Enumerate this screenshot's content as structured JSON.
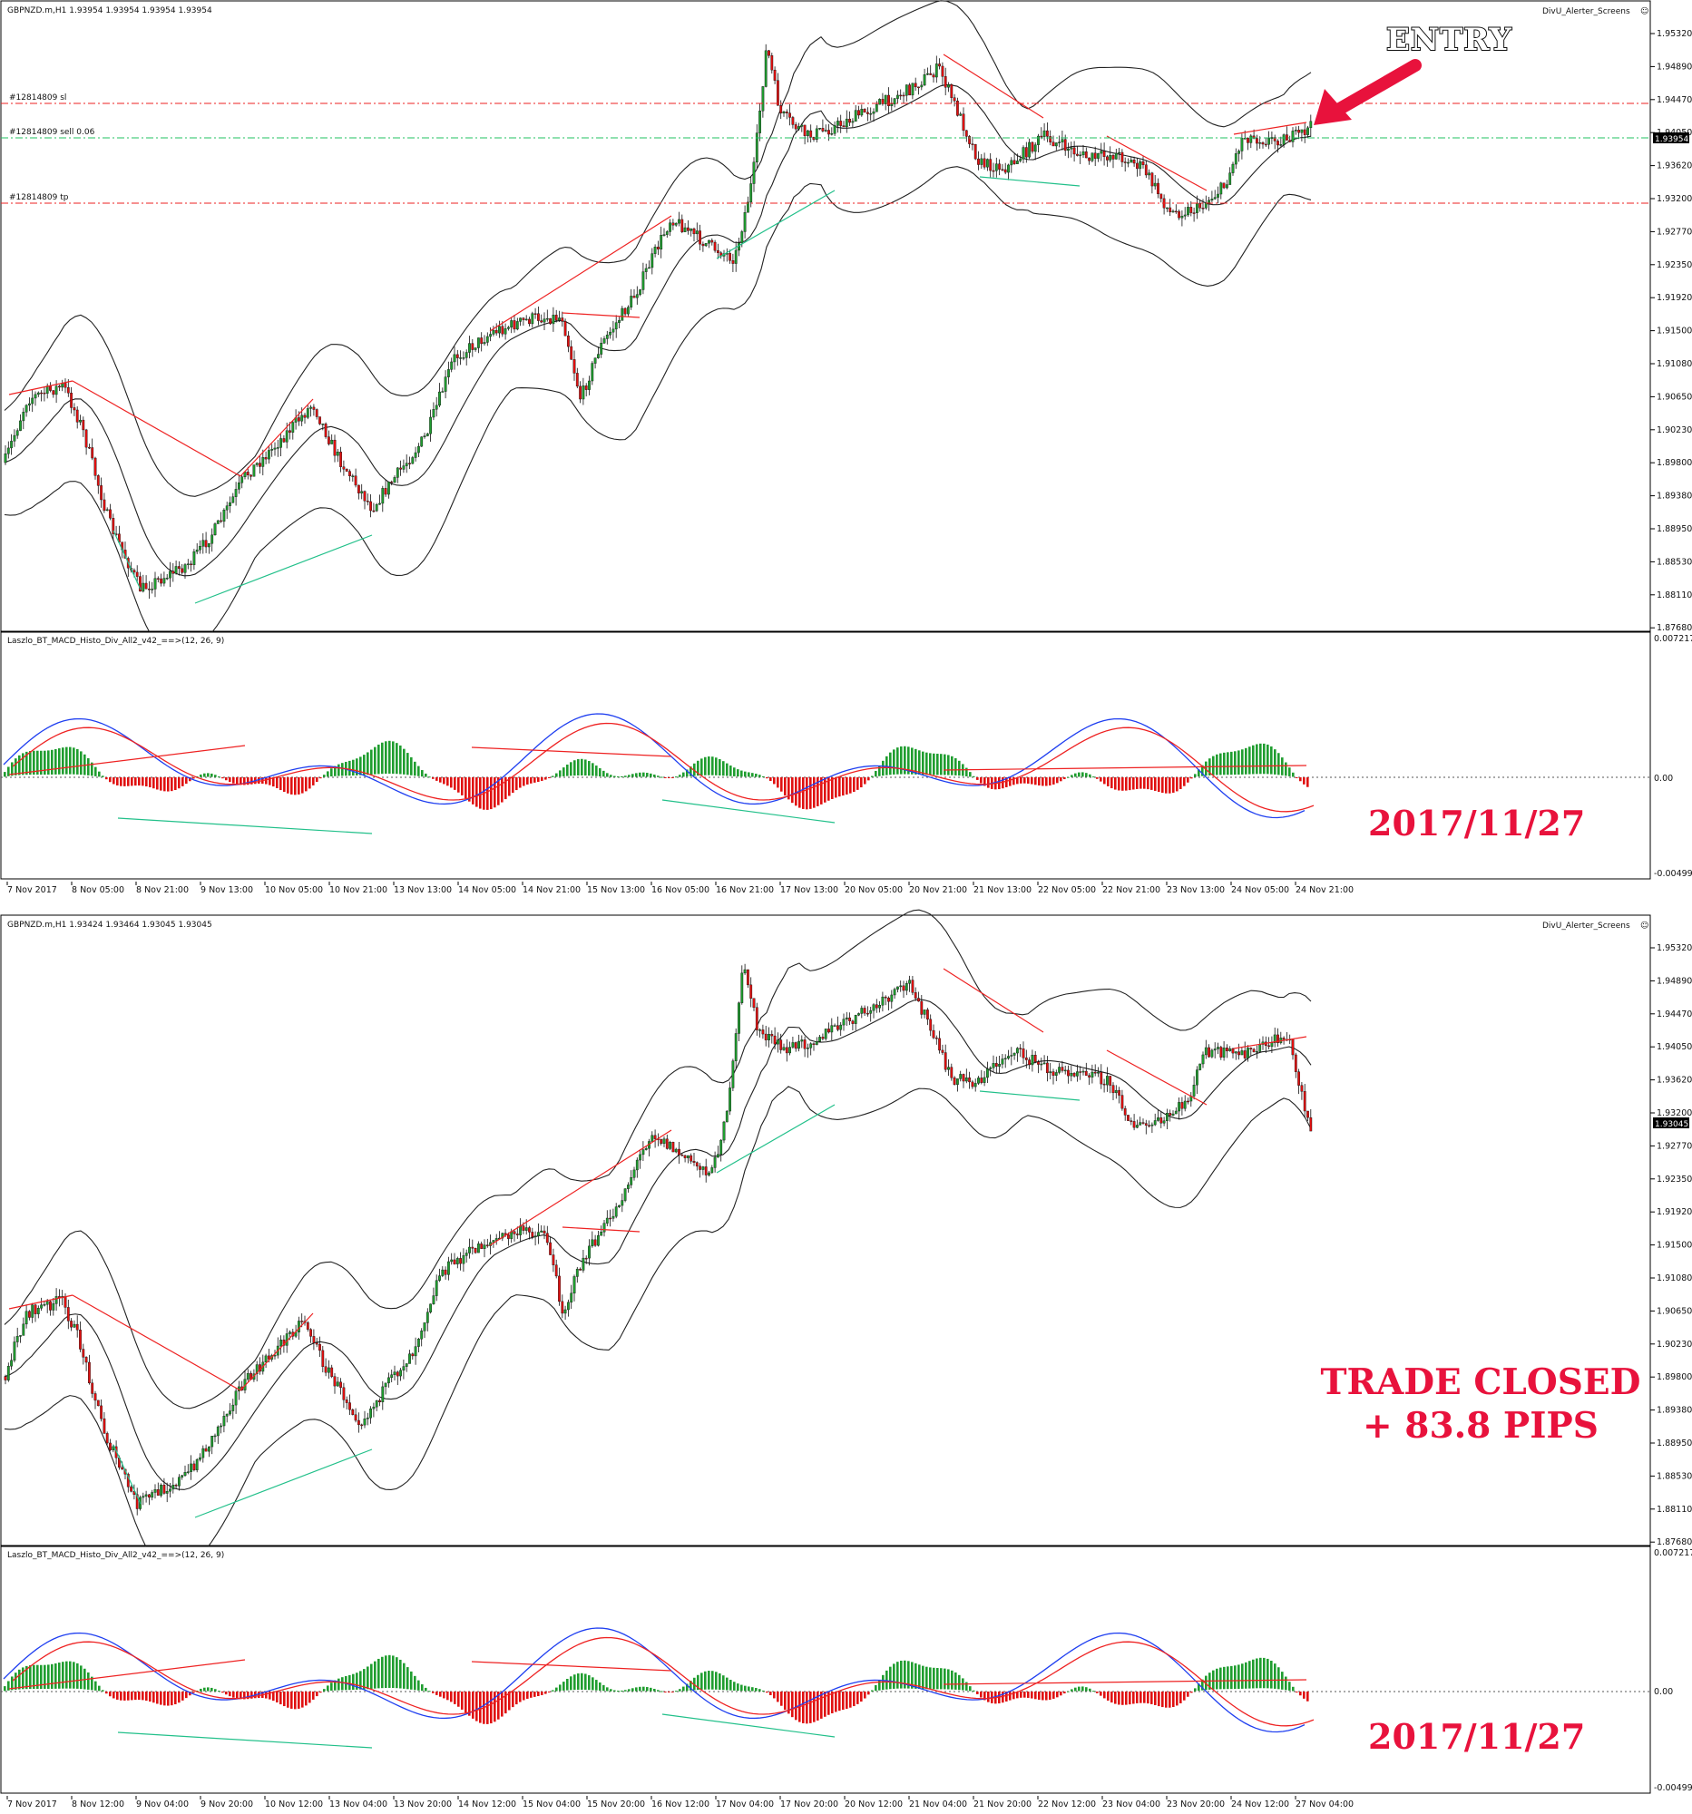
{
  "colors": {
    "bull": "#1f9d2f",
    "bear": "#e01010",
    "macd_line": "#1f3ff0",
    "signal_line": "#ee2222",
    "div_red": "#ee2222",
    "div_green": "#22c08a",
    "accent": "#e8123c"
  },
  "top_chart": {
    "header": "GBPNZD.m,H1  1.93954 1.93954 1.93954 1.93954",
    "indicator_name": "DivU_Alerter_Screens",
    "price_labels": [
      "1.95320",
      "1.94890",
      "1.94470",
      "1.94050",
      "1.93620",
      "1.93200",
      "1.92770",
      "1.92350",
      "1.91920",
      "1.91500",
      "1.91080",
      "1.90650",
      "1.90230",
      "1.89800",
      "1.89380",
      "1.88950",
      "1.88530",
      "1.88110",
      "1.87680"
    ],
    "current_price": "1.93954",
    "order_lines": [
      {
        "label": "#12814809 sl",
        "price": 1.944,
        "style": "red"
      },
      {
        "label": "#12814809 sell 0.06",
        "price": 1.93954,
        "style": "green"
      },
      {
        "label": "#12814809 tp",
        "price": 1.9312,
        "style": "red"
      }
    ],
    "entry_label": "ENTRY"
  },
  "top_macd": {
    "title": "Laszlo_BT_MACD_Histo_Div_All2_v42_==>(12, 26, 9)",
    "scale_labels": [
      "0.007217",
      "0.00",
      "-0.004996"
    ],
    "date_stamp": "2017/11/27"
  },
  "top_time_axis": [
    "7 Nov 2017",
    "8 Nov 05:00",
    "8 Nov 21:00",
    "9 Nov 13:00",
    "10 Nov 05:00",
    "10 Nov 21:00",
    "13 Nov 13:00",
    "14 Nov 05:00",
    "14 Nov 21:00",
    "15 Nov 13:00",
    "16 Nov 05:00",
    "16 Nov 21:00",
    "17 Nov 13:00",
    "20 Nov 05:00",
    "20 Nov 21:00",
    "21 Nov 13:00",
    "22 Nov 05:00",
    "22 Nov 21:00",
    "23 Nov 13:00",
    "24 Nov 05:00",
    "24 Nov 21:00"
  ],
  "bottom_chart": {
    "header": "GBPNZD.m,H1  1.93424 1.93464 1.93045 1.93045",
    "indicator_name": "DivU_Alerter_Screens",
    "price_labels": [
      "1.95320",
      "1.94890",
      "1.94470",
      "1.94050",
      "1.93620",
      "1.93200",
      "1.92770",
      "1.92350",
      "1.91920",
      "1.91500",
      "1.91080",
      "1.90650",
      "1.90230",
      "1.89800",
      "1.89380",
      "1.88950",
      "1.88530",
      "1.88110",
      "1.87680"
    ],
    "current_price": "1.93045",
    "closed_line1": "TRADE CLOSED",
    "closed_line2": "+ 83.8 PIPS"
  },
  "bottom_macd": {
    "title": "Laszlo_BT_MACD_Histo_Div_All2_v42_==>(12, 26, 9)",
    "scale_labels": [
      "0.007217",
      "0.00",
      "-0.004996"
    ],
    "date_stamp": "2017/11/27"
  },
  "bottom_time_axis": [
    "7 Nov 2017",
    "8 Nov 12:00",
    "9 Nov 04:00",
    "9 Nov 20:00",
    "10 Nov 12:00",
    "13 Nov 04:00",
    "13 Nov 20:00",
    "14 Nov 12:00",
    "15 Nov 04:00",
    "15 Nov 20:00",
    "16 Nov 12:00",
    "17 Nov 04:00",
    "17 Nov 20:00",
    "20 Nov 12:00",
    "21 Nov 04:00",
    "21 Nov 20:00",
    "22 Nov 12:00",
    "23 Nov 04:00",
    "23 Nov 20:00",
    "24 Nov 12:00",
    "27 Nov 04:00"
  ]
}
